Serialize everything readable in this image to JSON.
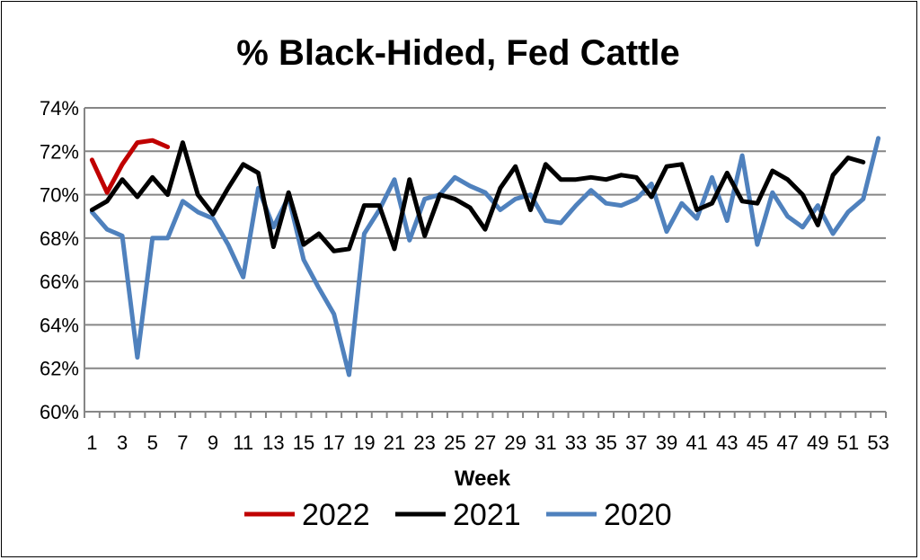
{
  "chart_data": {
    "type": "line",
    "title": "% Black-Hided, Fed Cattle",
    "xlabel": "Week",
    "ylabel": "",
    "ylim": [
      60,
      74
    ],
    "y_ticks": [
      "60%",
      "62%",
      "64%",
      "66%",
      "68%",
      "70%",
      "72%",
      "74%"
    ],
    "y_tick_values": [
      60,
      62,
      64,
      66,
      68,
      70,
      72,
      74
    ],
    "x_range": [
      1,
      53
    ],
    "x_ticks": [
      "1",
      "3",
      "5",
      "7",
      "9",
      "11",
      "13",
      "15",
      "17",
      "19",
      "21",
      "23",
      "25",
      "27",
      "29",
      "31",
      "33",
      "35",
      "37",
      "39",
      "41",
      "43",
      "45",
      "47",
      "49",
      "51",
      "53"
    ],
    "grid": "horizontal",
    "legend_position": "bottom",
    "series": [
      {
        "name": "2022",
        "color": "#c00000",
        "x": [
          1,
          2,
          3,
          4,
          5,
          6
        ],
        "values": [
          71.6,
          70.1,
          71.4,
          72.4,
          72.5,
          72.2
        ]
      },
      {
        "name": "2021",
        "color": "#000000",
        "x": [
          1,
          2,
          3,
          4,
          5,
          6,
          7,
          8,
          9,
          10,
          11,
          12,
          13,
          14,
          15,
          16,
          17,
          18,
          19,
          20,
          21,
          22,
          23,
          24,
          25,
          26,
          27,
          28,
          29,
          30,
          31,
          32,
          33,
          34,
          35,
          36,
          37,
          38,
          39,
          40,
          41,
          42,
          43,
          44,
          45,
          46,
          47,
          48,
          49,
          50,
          51,
          52
        ],
        "values": [
          69.3,
          69.7,
          70.7,
          69.9,
          70.8,
          70.0,
          72.4,
          70.0,
          69.1,
          70.3,
          71.4,
          71.0,
          67.6,
          70.1,
          67.7,
          68.2,
          67.4,
          67.5,
          69.5,
          69.5,
          67.5,
          70.7,
          68.1,
          70.0,
          69.8,
          69.4,
          68.4,
          70.3,
          71.3,
          69.3,
          71.4,
          70.7,
          70.7,
          70.8,
          70.7,
          70.9,
          70.8,
          69.9,
          71.3,
          71.4,
          69.3,
          69.6,
          71.0,
          69.7,
          69.6,
          71.1,
          70.7,
          70.0,
          68.6,
          70.9,
          71.7,
          71.5
        ]
      },
      {
        "name": "2020",
        "color": "#4f81bd",
        "x": [
          1,
          2,
          3,
          4,
          5,
          6,
          7,
          8,
          9,
          10,
          11,
          12,
          13,
          14,
          15,
          16,
          17,
          18,
          19,
          20,
          21,
          22,
          23,
          24,
          25,
          26,
          27,
          28,
          29,
          30,
          31,
          32,
          33,
          34,
          35,
          36,
          37,
          38,
          39,
          40,
          41,
          42,
          43,
          44,
          45,
          46,
          47,
          48,
          49,
          50,
          51,
          52,
          53
        ],
        "values": [
          69.2,
          68.4,
          68.1,
          62.5,
          68.0,
          68.0,
          69.7,
          69.2,
          68.9,
          67.7,
          66.2,
          70.3,
          68.5,
          69.9,
          67.0,
          65.7,
          64.5,
          61.7,
          68.2,
          69.3,
          70.7,
          67.9,
          69.8,
          70.0,
          70.8,
          70.4,
          70.1,
          69.3,
          69.8,
          70.0,
          68.8,
          68.7,
          69.5,
          70.2,
          69.6,
          69.5,
          69.8,
          70.5,
          68.3,
          69.6,
          68.9,
          70.8,
          68.8,
          71.8,
          67.7,
          70.1,
          69.0,
          68.5,
          69.5,
          68.2,
          69.2,
          69.8,
          72.6
        ]
      }
    ]
  }
}
